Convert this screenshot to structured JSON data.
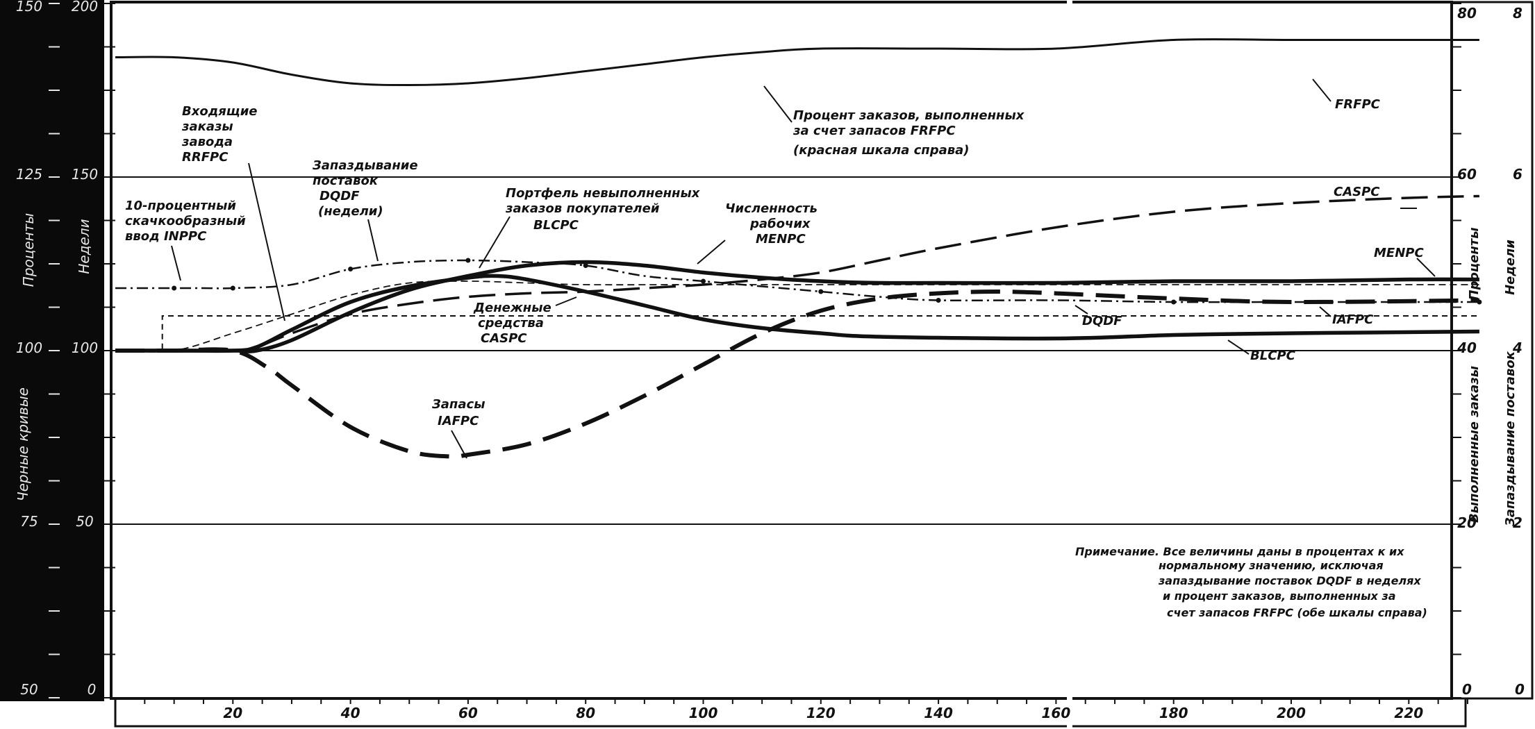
{
  "chart_data": {
    "type": "line",
    "x_ticks": [
      20,
      40,
      60,
      80,
      100,
      120,
      140,
      160,
      180,
      200,
      220
    ],
    "left_axis_outer": {
      "title": "Черные кривые",
      "tick_labels": [
        "150",
        "125",
        "100",
        "75",
        "50"
      ]
    },
    "left_axis_inner": {
      "title_top": "Проценты",
      "title_top2": "Недели",
      "tick_labels": [
        "200",
        "150",
        "100",
        "50",
        "0"
      ]
    },
    "right_axis_1": {
      "title_top": "Проценты",
      "title_bottom": "Выполненные заказы",
      "tick_labels": [
        "80",
        "60",
        "40",
        "20",
        "0"
      ]
    },
    "right_axis_2": {
      "title_top": "Недели",
      "title_bottom": "Запаздывание поставок",
      "tick_labels": [
        "8",
        "6",
        "4",
        "2",
        "0"
      ]
    },
    "ylim_inner": [
      0,
      200
    ],
    "xlim": [
      0,
      232
    ],
    "grid_y": [
      150,
      100,
      50
    ],
    "series": [
      {
        "name": "FRFPC",
        "style": "solid-thin",
        "x": [
          0,
          10,
          20,
          30,
          40,
          50,
          60,
          70,
          80,
          90,
          100,
          110,
          120,
          140,
          160,
          180,
          200,
          220,
          232
        ],
        "y": [
          184.5,
          184.5,
          183,
          179.5,
          177,
          176.5,
          177,
          178.5,
          180.5,
          182.5,
          184.5,
          186,
          187,
          187,
          187,
          189.5,
          189.5,
          189.5,
          189.5
        ]
      },
      {
        "name": "MENPC",
        "style": "solid-heavy",
        "x": [
          0,
          10,
          20,
          24,
          30,
          40,
          50,
          60,
          70,
          80,
          90,
          100,
          110,
          120,
          130,
          140,
          160,
          180,
          200,
          220,
          232
        ],
        "y": [
          100,
          100,
          100,
          100,
          103,
          111,
          117.5,
          121.5,
          124.5,
          125.5,
          124.5,
          122.5,
          121,
          120,
          119.5,
          119.5,
          119.5,
          120,
          120,
          120.5,
          120.5
        ]
      },
      {
        "name": "BLCPC",
        "style": "solid-heavy",
        "x": [
          0,
          10,
          20,
          24,
          30,
          40,
          50,
          60,
          65,
          70,
          80,
          90,
          100,
          110,
          120,
          130,
          160,
          180,
          200,
          232
        ],
        "y": [
          100,
          100,
          100,
          101,
          106,
          114,
          118.5,
          121,
          121.5,
          120.5,
          117,
          113,
          109,
          106.5,
          105,
          104,
          103.5,
          104.5,
          105,
          105.5
        ]
      },
      {
        "name": "CASPC",
        "style": "long-dash",
        "x": [
          0,
          10,
          20,
          24,
          30,
          40,
          50,
          60,
          70,
          80,
          90,
          100,
          110,
          120,
          130,
          140,
          160,
          180,
          200,
          220,
          232
        ],
        "y": [
          100,
          100,
          100,
          101,
          105,
          110.5,
          113.5,
          115.5,
          116.5,
          117,
          118,
          119,
          120.5,
          122.5,
          126,
          129.5,
          135.5,
          140,
          142.5,
          144,
          144.5
        ]
      },
      {
        "name": "IAFPC",
        "style": "dash-heavy",
        "x": [
          0,
          10,
          20,
          26,
          30,
          40,
          50,
          57,
          60,
          70,
          80,
          90,
          100,
          110,
          120,
          130,
          140,
          150,
          160,
          180,
          200,
          232
        ],
        "y": [
          100,
          100,
          100,
          95,
          90,
          78,
          71,
          69.5,
          70,
          73,
          79,
          87,
          96,
          105,
          111.5,
          115,
          116.5,
          117,
          116.5,
          115,
          114,
          114.5
        ]
      },
      {
        "name": "DQDF",
        "style": "dash-dot",
        "x": [
          0,
          10,
          15,
          20,
          30,
          40,
          50,
          60,
          70,
          80,
          90,
          100,
          110,
          120,
          130,
          140,
          160,
          180,
          200,
          232
        ],
        "y": [
          118,
          118,
          118,
          118,
          119,
          123.5,
          125.5,
          126,
          125.5,
          124.5,
          121.5,
          120,
          118.5,
          117,
          115.5,
          114.5,
          114.5,
          114,
          114,
          114
        ]
      },
      {
        "name": "RRFPC",
        "style": "dash-thin",
        "x": [
          0,
          10,
          20,
          30,
          40,
          50,
          60,
          70,
          80,
          100,
          120,
          160,
          180,
          200,
          232
        ],
        "y": [
          100,
          100,
          105,
          110.5,
          116,
          119.5,
          120,
          119.5,
          119,
          119,
          119,
          119,
          119,
          119,
          119
        ]
      },
      {
        "name": "INPPC",
        "style": "step-dash",
        "x": [
          0,
          8,
          8,
          232
        ],
        "y": [
          100,
          100,
          110,
          110
        ]
      }
    ],
    "annotations": {
      "inppc": [
        "10-процентный",
        "скачкообразный",
        "ввод INPPC"
      ],
      "rrfpc": [
        "Входящие",
        "заказы",
        "завода",
        "RRFPC"
      ],
      "dqdf": [
        "Запаздывание",
        "поставок",
        "DQDF",
        "(недели)"
      ],
      "blcpc": [
        "Портфель невыполненных",
        "заказов покупателей",
        "BLCPC"
      ],
      "menpc": [
        "Численность",
        "рабочих",
        "MENPC"
      ],
      "frfpc": [
        "Процент заказов, выполненных",
        "за счет запасов FRFPC",
        "(красная шкала справа)"
      ],
      "caspc": [
        "Денежные",
        "средства",
        "CASPC"
      ],
      "iafpc": [
        "Запасы",
        "IAFPC"
      ],
      "right_frfpc": "FRFPC",
      "right_caspc": "CASPC",
      "right_menpc": "MENPC",
      "right_dqdf": "DQDF",
      "right_iafpc": "IAFPC",
      "right_blcpc": "BLCPC",
      "note": [
        "Примечание.  Все величины даны в процентах к их",
        "нормальному значению, исключая",
        "запаздывание поставок DQDF в неделях",
        "и процент заказов, выполненных за",
        "счет запасов FRFPC (обе шкалы справа)"
      ]
    },
    "grid": true,
    "legend": "none"
  }
}
